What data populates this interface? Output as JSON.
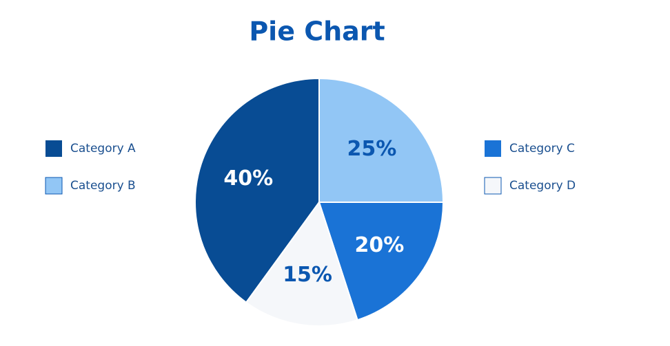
{
  "chart_data": {
    "type": "pie",
    "title": "Pie Chart",
    "categories": [
      "Category A",
      "Category B",
      "Category C",
      "Category D"
    ],
    "values": [
      40,
      25,
      20,
      15
    ],
    "value_labels": [
      "40%",
      "25%",
      "20%",
      "15%"
    ],
    "colors": [
      "#084c94",
      "#92c6f5",
      "#1a73d6",
      "#f5f7fa"
    ]
  }
}
